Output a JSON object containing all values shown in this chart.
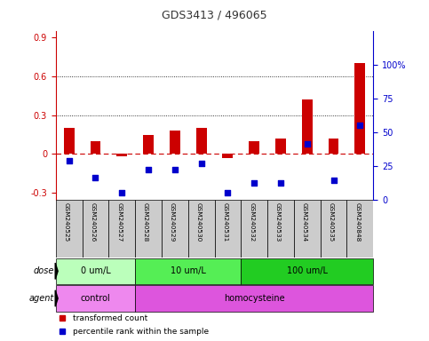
{
  "title": "GDS3413 / 496065",
  "samples": [
    "GSM240525",
    "GSM240526",
    "GSM240527",
    "GSM240528",
    "GSM240529",
    "GSM240530",
    "GSM240531",
    "GSM240532",
    "GSM240533",
    "GSM240534",
    "GSM240535",
    "GSM240848"
  ],
  "red_values": [
    0.2,
    0.1,
    -0.02,
    0.15,
    0.18,
    0.2,
    -0.03,
    0.1,
    0.12,
    0.42,
    0.12,
    0.7
  ],
  "blue_yvals": [
    -0.05,
    -0.18,
    -0.3,
    -0.12,
    -0.12,
    -0.07,
    -0.3,
    -0.22,
    -0.22,
    0.08,
    -0.2,
    0.22
  ],
  "ylim_left": [
    -0.35,
    0.95
  ],
  "ylim_right": [
    0,
    125
  ],
  "yticks_left": [
    -0.3,
    0.0,
    0.3,
    0.6,
    0.9
  ],
  "ytick_labels_left": [
    "-0.3",
    "0",
    "0.3",
    "0.6",
    "0.9"
  ],
  "yticks_right": [
    0,
    25,
    50,
    75,
    100
  ],
  "ytick_labels_right": [
    "0",
    "25",
    "50",
    "75",
    "100%"
  ],
  "hlines_dotted": [
    0.3,
    0.6
  ],
  "dose_groups": [
    {
      "label": "0 um/L",
      "start": 0,
      "end": 3,
      "color": "#bbffbb"
    },
    {
      "label": "10 um/L",
      "start": 3,
      "end": 7,
      "color": "#55ee55"
    },
    {
      "label": "100 um/L",
      "start": 7,
      "end": 12,
      "color": "#22cc22"
    }
  ],
  "agent_groups": [
    {
      "label": "control",
      "start": 0,
      "end": 3,
      "color": "#ee88ee"
    },
    {
      "label": "homocysteine",
      "start": 3,
      "end": 12,
      "color": "#dd55dd"
    }
  ],
  "dose_label": "dose",
  "agent_label": "agent",
  "legend_items": [
    {
      "color": "#cc0000",
      "label": "transformed count"
    },
    {
      "color": "#0000cc",
      "label": "percentile rank within the sample"
    }
  ],
  "bar_color": "#cc0000",
  "dot_color": "#0000cc",
  "dashed_line_color": "#cc0000",
  "left_tick_color": "#cc0000",
  "right_tick_color": "#0000cc",
  "xlabel_bg_color": "#cccccc",
  "title_color": "#333333",
  "bar_width": 0.4
}
